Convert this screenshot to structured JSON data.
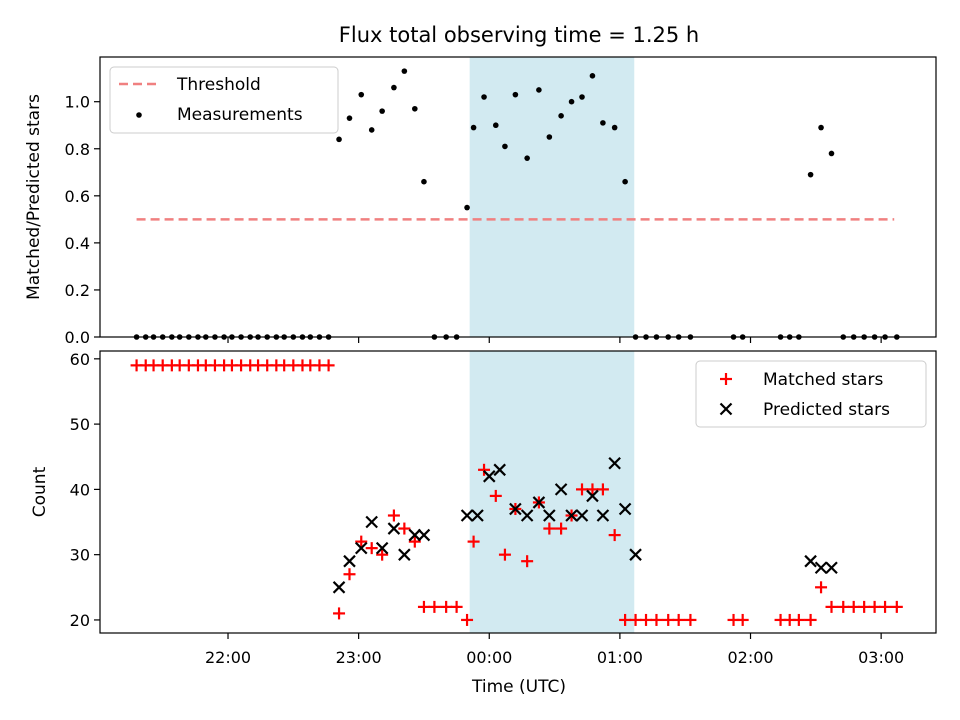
{
  "title": "Flux total observing time = 1.25 h",
  "colors": {
    "threshold": "#f08080",
    "measurement": "#000000",
    "matched": "#ff0000",
    "predicted": "#000000",
    "shade": "#add8e6"
  },
  "chart_data": [
    {
      "type": "scatter",
      "id": "top",
      "ylabel": "Matched/Predicted stars",
      "ylim": [
        0.0,
        1.19
      ],
      "yticks": [
        0.0,
        0.2,
        0.4,
        0.6,
        0.8,
        1.0
      ],
      "ytick_labels": [
        "0.0",
        "0.2",
        "0.4",
        "0.6",
        "0.8",
        "1.0"
      ],
      "xlim_hours": [
        21.02,
        27.42
      ],
      "xticks_hours": [
        22,
        23,
        24,
        25,
        26,
        27
      ],
      "shaded_span_hours": [
        23.85,
        25.11
      ],
      "legend": {
        "placement": "top-left",
        "entries": [
          "Threshold",
          "Measurements"
        ]
      },
      "threshold": {
        "name": "Threshold",
        "value": 0.5,
        "x_range_hours": [
          21.3,
          27.1
        ]
      },
      "measurements": {
        "name": "Measurements",
        "x_hours": [
          21.3,
          21.37,
          21.43,
          21.5,
          21.57,
          21.63,
          21.7,
          21.77,
          21.83,
          21.9,
          21.97,
          22.03,
          22.1,
          22.17,
          22.23,
          22.3,
          22.37,
          22.43,
          22.5,
          22.57,
          22.63,
          22.7,
          22.77,
          22.85,
          22.93,
          23.02,
          23.1,
          23.18,
          23.27,
          23.35,
          23.43,
          23.5,
          23.58,
          23.67,
          23.75,
          23.83,
          23.88,
          23.96,
          24.05,
          24.12,
          24.2,
          24.29,
          24.38,
          24.46,
          24.55,
          24.63,
          24.71,
          24.79,
          24.87,
          24.96,
          25.04,
          25.12,
          25.2,
          25.28,
          25.37,
          25.45,
          25.54,
          25.87,
          25.94,
          26.23,
          26.3,
          26.37,
          26.46,
          26.54,
          26.62,
          26.71,
          26.79,
          26.87,
          26.95,
          27.03,
          27.12
        ],
        "y": [
          0,
          0,
          0,
          0,
          0,
          0,
          0,
          0,
          0,
          0,
          0,
          0,
          0,
          0,
          0,
          0,
          0,
          0,
          0,
          0,
          0,
          0,
          0,
          0.84,
          0.93,
          1.03,
          0.88,
          0.96,
          1.06,
          1.13,
          0.97,
          0.66,
          0,
          0,
          0,
          0.55,
          0.89,
          1.02,
          0.9,
          0.81,
          1.03,
          0.76,
          1.05,
          0.85,
          0.94,
          1.0,
          1.02,
          1.11,
          0.91,
          0.89,
          0.66,
          0,
          0,
          0,
          0,
          0,
          0,
          0,
          0,
          0,
          0,
          0,
          0.69,
          0.89,
          0.78,
          0,
          0,
          0,
          0,
          0,
          0
        ]
      }
    },
    {
      "type": "scatter",
      "id": "bottom",
      "ylabel": "Count",
      "xlabel": "Time (UTC)",
      "ylim": [
        18,
        61.2
      ],
      "yticks": [
        20,
        30,
        40,
        50,
        60
      ],
      "ytick_labels": [
        "20",
        "30",
        "40",
        "50",
        "60"
      ],
      "xlim_hours": [
        21.02,
        27.42
      ],
      "xticks_hours": [
        22,
        23,
        24,
        25,
        26,
        27
      ],
      "xtick_labels": [
        "22:00",
        "23:00",
        "00:00",
        "01:00",
        "02:00",
        "03:00"
      ],
      "shaded_span_hours": [
        23.85,
        25.11
      ],
      "legend": {
        "placement": "top-right",
        "entries": [
          "Matched stars",
          "Predicted stars"
        ]
      },
      "matched": {
        "name": "Matched stars",
        "x_hours": [
          21.3,
          21.37,
          21.43,
          21.5,
          21.57,
          21.63,
          21.7,
          21.77,
          21.83,
          21.9,
          21.97,
          22.03,
          22.1,
          22.17,
          22.23,
          22.3,
          22.37,
          22.43,
          22.5,
          22.57,
          22.63,
          22.7,
          22.77,
          22.85,
          22.93,
          23.02,
          23.1,
          23.18,
          23.27,
          23.35,
          23.43,
          23.5,
          23.58,
          23.67,
          23.75,
          23.83,
          23.88,
          23.96,
          24.05,
          24.12,
          24.2,
          24.29,
          24.38,
          24.46,
          24.55,
          24.63,
          24.71,
          24.79,
          24.87,
          24.96,
          25.04,
          25.12,
          25.2,
          25.28,
          25.37,
          25.45,
          25.54,
          25.87,
          25.94,
          26.23,
          26.3,
          26.37,
          26.46,
          26.54,
          26.62,
          26.71,
          26.79,
          26.87,
          26.95,
          27.03,
          27.12
        ],
        "y": [
          59,
          59,
          59,
          59,
          59,
          59,
          59,
          59,
          59,
          59,
          59,
          59,
          59,
          59,
          59,
          59,
          59,
          59,
          59,
          59,
          59,
          59,
          59,
          21,
          27,
          32,
          31,
          30,
          36,
          34,
          32,
          22,
          22,
          22,
          22,
          20,
          32,
          43,
          39,
          30,
          37,
          29,
          38,
          34,
          34,
          36,
          40,
          40,
          40,
          33,
          20,
          20,
          20,
          20,
          20,
          20,
          20,
          20,
          20,
          20,
          20,
          20,
          20,
          25,
          22,
          22,
          22,
          22,
          22,
          22,
          22
        ]
      },
      "predicted": {
        "name": "Predicted stars",
        "x_hours": [
          22.85,
          22.93,
          23.02,
          23.1,
          23.18,
          23.27,
          23.35,
          23.43,
          23.5,
          23.83,
          23.91,
          24.0,
          24.08,
          24.2,
          24.29,
          24.38,
          24.46,
          24.55,
          24.63,
          24.71,
          24.79,
          24.87,
          24.96,
          25.04,
          25.12,
          26.46,
          26.54,
          26.62
        ],
        "y": [
          25,
          29,
          31,
          35,
          31,
          34,
          30,
          33,
          33,
          36,
          36,
          42,
          43,
          37,
          36,
          38,
          36,
          40,
          36,
          36,
          39,
          36,
          44,
          37,
          30,
          29,
          28,
          28
        ]
      }
    }
  ]
}
